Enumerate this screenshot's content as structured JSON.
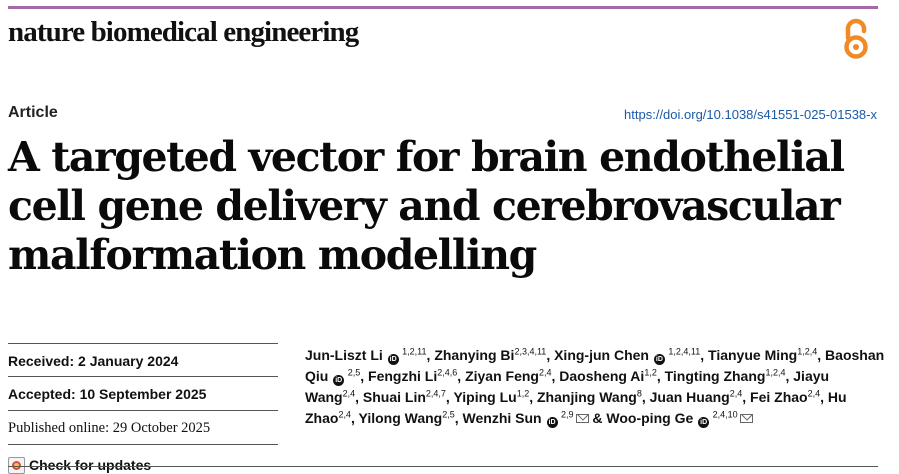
{
  "header": {
    "journal": "nature biomedical engineering",
    "article_type": "Article",
    "doi": "https://doi.org/10.1038/s41551-025-01538-x",
    "oa_icon": "open-access-icon",
    "accent_color": "#a46aa8"
  },
  "title_lines": [
    "A targeted vector for brain endothelial",
    "cell gene delivery and cerebrovascular",
    "malformation modelling"
  ],
  "meta": {
    "received_label": "Received:",
    "received_value": "2 January 2024",
    "accepted_label": "Accepted:",
    "accepted_value": "10 September 2025",
    "published": "Published online: 29 October 2025",
    "check_updates": "Check for updates"
  },
  "authors": [
    {
      "name": "Jun-Liszt Li",
      "orcid": true,
      "aff": "1,2,11"
    },
    {
      "name": "Zhanying Bi",
      "orcid": false,
      "aff": "2,3,4,11"
    },
    {
      "name": "Xing-jun Chen",
      "orcid": true,
      "aff": "1,2,4,11"
    },
    {
      "name": "Tianyue Ming",
      "orcid": false,
      "aff": "1,2,4"
    },
    {
      "name": "Baoshan Qiu",
      "orcid": true,
      "aff": "2,5"
    },
    {
      "name": "Fengzhi Li",
      "orcid": false,
      "aff": "2,4,6"
    },
    {
      "name": "Ziyan Feng",
      "orcid": false,
      "aff": "2,4"
    },
    {
      "name": "Daosheng Ai",
      "orcid": false,
      "aff": "1,2"
    },
    {
      "name": "Tingting Zhang",
      "orcid": false,
      "aff": "1,2,4"
    },
    {
      "name": "Jiayu Wang",
      "orcid": false,
      "aff": "2,4"
    },
    {
      "name": "Shuai Lin",
      "orcid": false,
      "aff": "2,4,7"
    },
    {
      "name": "Yiping Lu",
      "orcid": false,
      "aff": "1,2"
    },
    {
      "name": "Zhanjing Wang",
      "orcid": false,
      "aff": "8"
    },
    {
      "name": "Juan Huang",
      "orcid": false,
      "aff": "2,4"
    },
    {
      "name": "Fei Zhao",
      "orcid": false,
      "aff": "2,4"
    },
    {
      "name": "Hu Zhao",
      "orcid": false,
      "aff": "2,4"
    },
    {
      "name": "Yilong Wang",
      "orcid": false,
      "aff": "2,5"
    },
    {
      "name": "Wenzhi Sun",
      "orcid": true,
      "aff": "2,9",
      "mail": true
    },
    {
      "name": "Woo-ping Ge",
      "orcid": true,
      "aff": "2,4,10",
      "mail": true
    }
  ]
}
